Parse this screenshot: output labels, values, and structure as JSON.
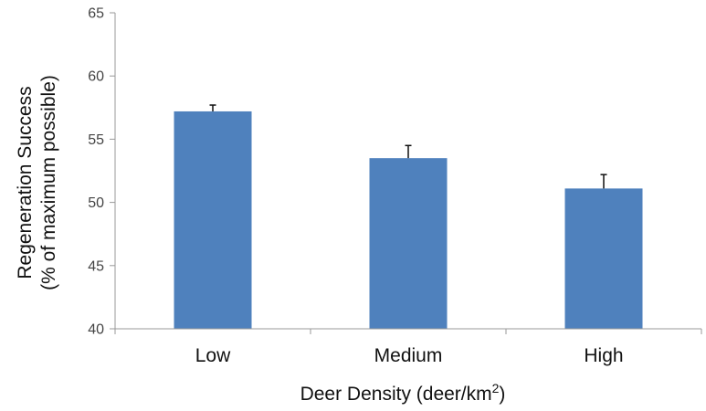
{
  "chart_data": {
    "type": "bar",
    "categories": [
      "Low",
      "Medium",
      "High"
    ],
    "values": [
      57.2,
      53.5,
      51.1
    ],
    "error_upper": [
      0.5,
      1.0,
      1.1
    ],
    "title": "",
    "xlabel": {
      "text": "Deer Density (deer/km",
      "superscript": "2",
      "suffix": ")"
    },
    "ylabel": {
      "line1": "Regeneration Success",
      "line2": "(% of maximum possible)"
    },
    "ylim": [
      40,
      65
    ],
    "yticks": [
      "40",
      "45",
      "50",
      "55",
      "60",
      "65"
    ],
    "grid": false,
    "bar_color": "#4F81BD",
    "axis_color": "#999999"
  }
}
